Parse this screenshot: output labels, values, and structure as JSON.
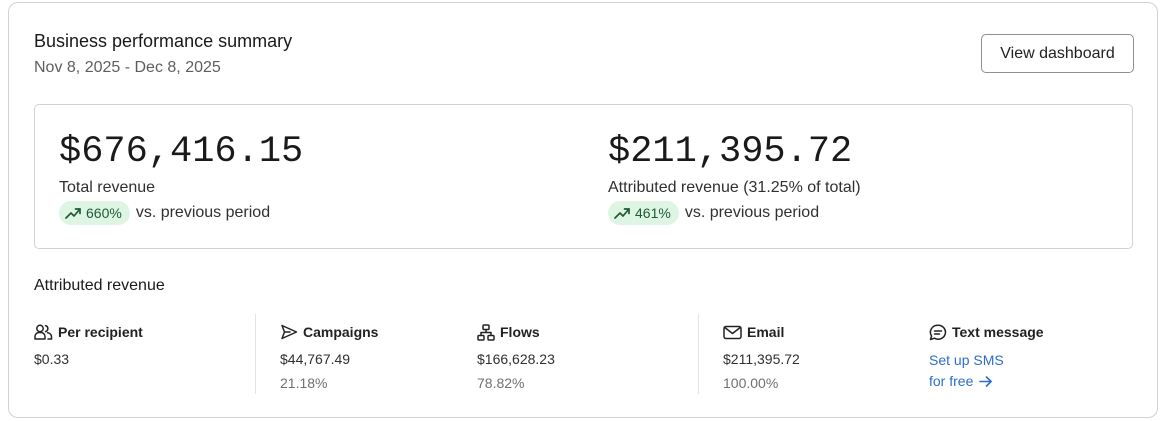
{
  "header": {
    "title": "Business performance summary",
    "date_range": "Nov 8, 2025 - Dec 8, 2025",
    "view_button": "View dashboard"
  },
  "metrics": [
    {
      "value": "$676,416.15",
      "label": "Total revenue",
      "change_pct": "660%",
      "change_text": "vs. previous period",
      "trend_icon": "trending-up-icon"
    },
    {
      "value": "$211,395.72",
      "label": "Attributed revenue (31.25% of total)",
      "change_pct": "461%",
      "change_text": "vs. previous period",
      "trend_icon": "trending-up-icon"
    }
  ],
  "attributed": {
    "title": "Attributed revenue",
    "per_recipient": {
      "label": "Per recipient",
      "value": "$0.33",
      "icon": "users-icon"
    },
    "campaigns": {
      "label": "Campaigns",
      "value": "$44,767.49",
      "pct": "21.18%",
      "icon": "send-icon"
    },
    "flows": {
      "label": "Flows",
      "value": "$166,628.23",
      "pct": "78.82%",
      "icon": "flow-icon"
    },
    "email": {
      "label": "Email",
      "value": "$211,395.72",
      "pct": "100.00%",
      "icon": "mail-icon"
    },
    "sms": {
      "label": "Text message",
      "link_line1": "Set up SMS",
      "link_line2": "for free",
      "icon": "message-icon"
    }
  },
  "colors": {
    "accent_link": "#2c6ecb",
    "pill_bg": "#dff5e4",
    "pill_text": "#1c5c35",
    "border": "#d2d2d2"
  }
}
